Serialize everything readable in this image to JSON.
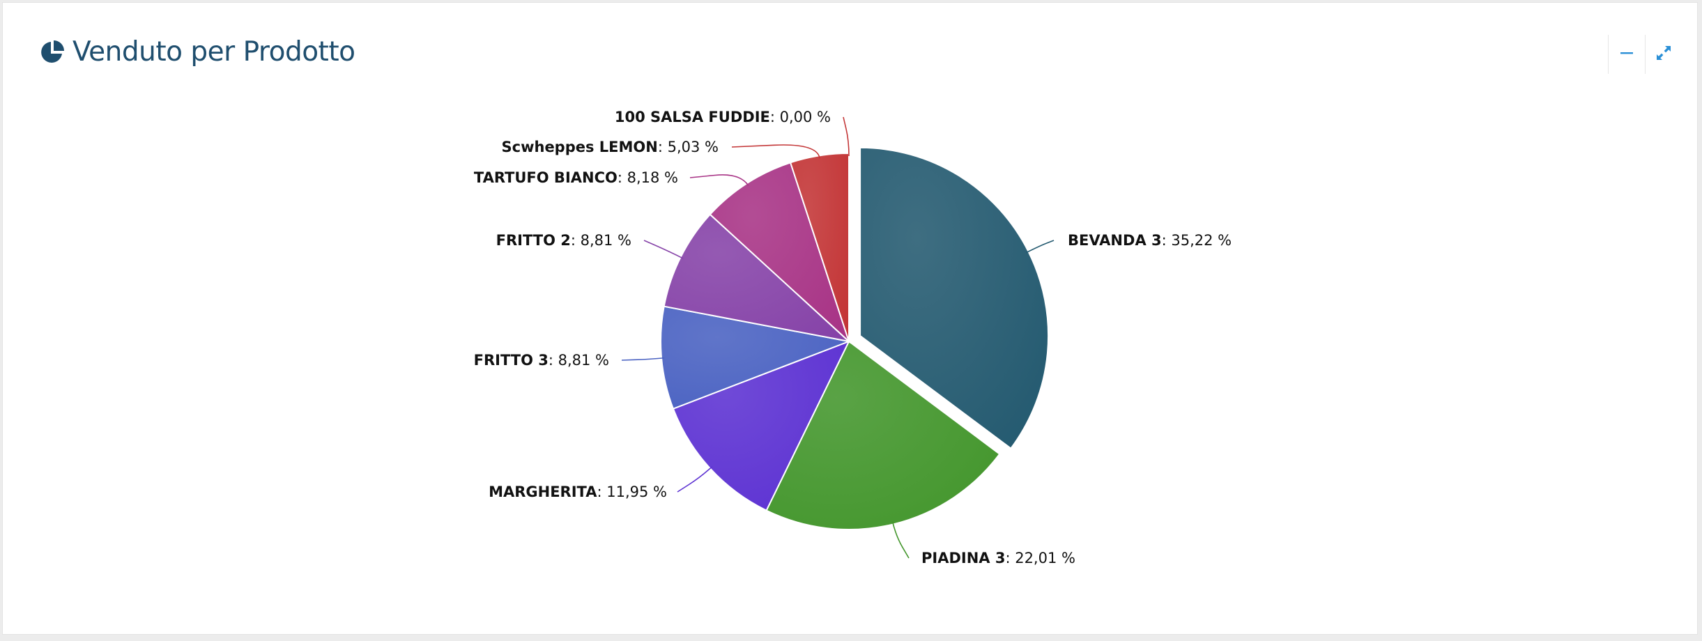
{
  "panel": {
    "title": "Venduto per Prodotto",
    "title_icon": "pie-chart-icon",
    "minimize_icon": "minus-icon",
    "expand_icon": "expand-arrows-icon"
  },
  "colors": {
    "title": "#1f4e6e",
    "tool_icons": "#2a8fd6"
  },
  "chart_data": {
    "type": "pie",
    "categories": [
      "BEVANDA 3",
      "PIADINA 3",
      "MARGHERITA",
      "FRITTO 3",
      "FRITTO 2",
      "TARTUFO BIANCO",
      "Scwheppes LEMON",
      "100 SALSA FUDDIE"
    ],
    "values": [
      35.22,
      22.01,
      11.95,
      8.81,
      8.81,
      8.18,
      5.03,
      0.0
    ],
    "value_labels": [
      "35,22 %",
      "22,01 %",
      "11,95 %",
      "8,81 %",
      "8,81 %",
      "8,18 %",
      "5,03 %",
      "0,00 %"
    ],
    "colors": [
      "#245a70",
      "#43962c",
      "#5c31d2",
      "#4a62c2",
      "#8643a8",
      "#a83486",
      "#c33536",
      "#c33536"
    ],
    "exploded": "BEVANDA 3",
    "legend": "none"
  }
}
